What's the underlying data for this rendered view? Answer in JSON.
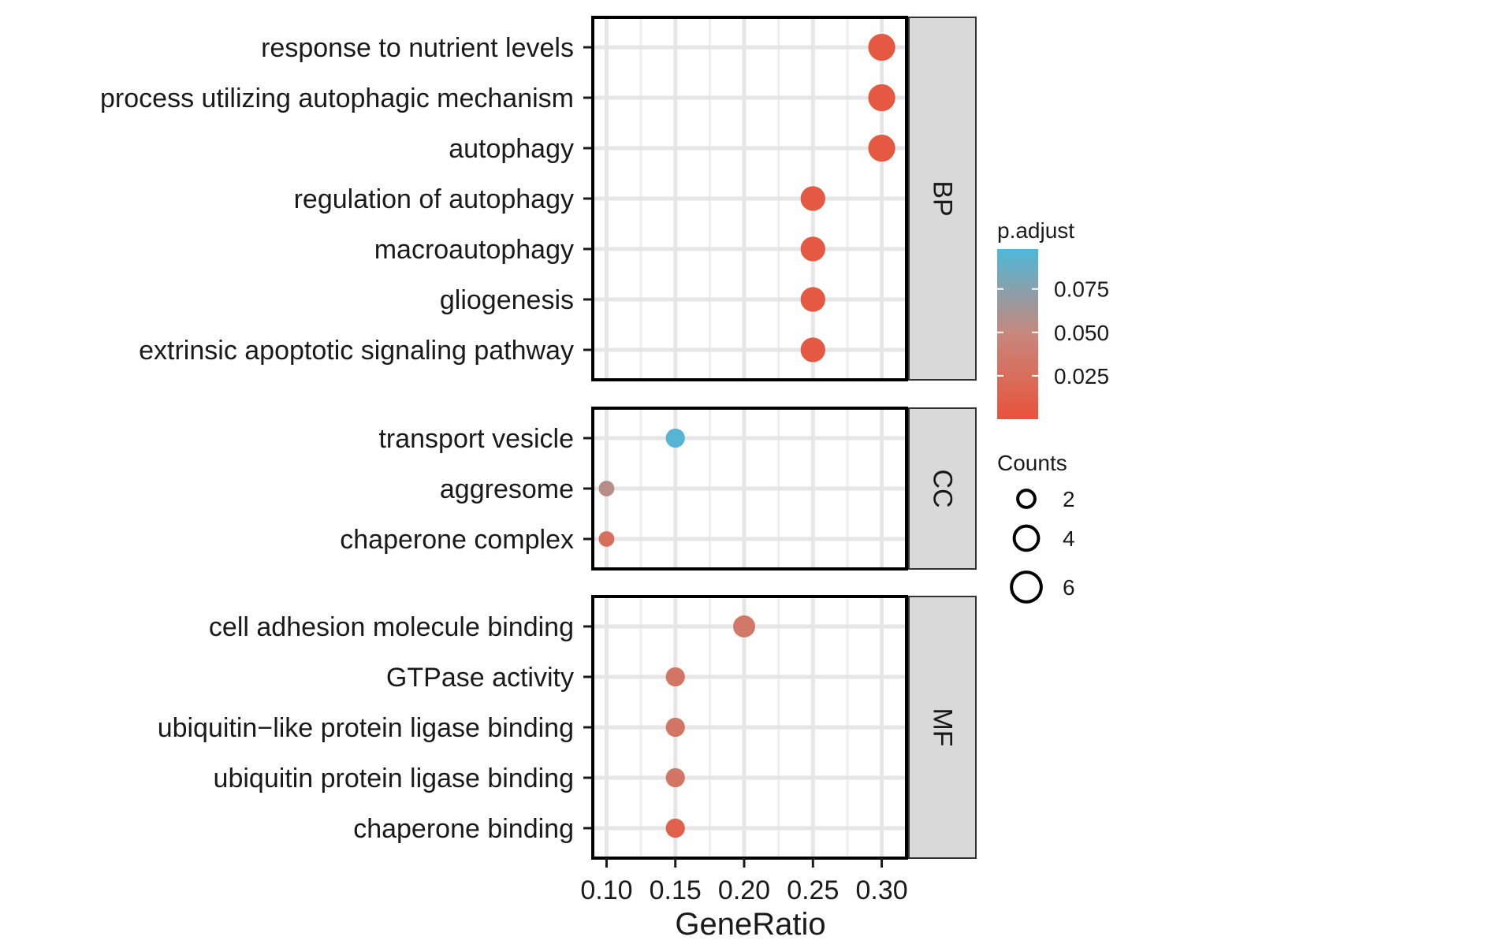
{
  "chart_data": {
    "type": "scatter",
    "xlabel": "GeneRatio",
    "xticks": [
      0.1,
      0.15,
      0.2,
      0.25,
      0.3
    ],
    "xtick_labels": [
      "0.10",
      "0.15",
      "0.20",
      "0.25",
      "0.30"
    ],
    "xlim": [
      0.09,
      0.318
    ],
    "grid": true,
    "facets": [
      {
        "name": "BP",
        "terms": [
          {
            "label": "response to nutrient levels",
            "x": 0.3,
            "count": 6,
            "p_adjust": 0.005
          },
          {
            "label": "process utilizing autophagic mechanism",
            "x": 0.3,
            "count": 6,
            "p_adjust": 0.005
          },
          {
            "label": "autophagy",
            "x": 0.3,
            "count": 6,
            "p_adjust": 0.005
          },
          {
            "label": "regulation of autophagy",
            "x": 0.25,
            "count": 5,
            "p_adjust": 0.005
          },
          {
            "label": "macroautophagy",
            "x": 0.25,
            "count": 5,
            "p_adjust": 0.005
          },
          {
            "label": "gliogenesis",
            "x": 0.25,
            "count": 5,
            "p_adjust": 0.005
          },
          {
            "label": "extrinsic apoptotic signaling pathway",
            "x": 0.25,
            "count": 5,
            "p_adjust": 0.005
          }
        ]
      },
      {
        "name": "CC",
        "terms": [
          {
            "label": "transport vesicle",
            "x": 0.15,
            "count": 3,
            "p_adjust": 0.095
          },
          {
            "label": "aggresome",
            "x": 0.1,
            "count": 2,
            "p_adjust": 0.055
          },
          {
            "label": "chaperone complex",
            "x": 0.1,
            "count": 2,
            "p_adjust": 0.025
          }
        ]
      },
      {
        "name": "MF",
        "terms": [
          {
            "label": "cell adhesion molecule binding",
            "x": 0.2,
            "count": 4,
            "p_adjust": 0.035
          },
          {
            "label": "GTPase activity",
            "x": 0.15,
            "count": 3,
            "p_adjust": 0.032
          },
          {
            "label": "ubiquitin−like protein ligase binding",
            "x": 0.15,
            "count": 3,
            "p_adjust": 0.032
          },
          {
            "label": "ubiquitin protein ligase binding",
            "x": 0.15,
            "count": 3,
            "p_adjust": 0.032
          },
          {
            "label": "chaperone binding",
            "x": 0.15,
            "count": 3,
            "p_adjust": 0.012
          }
        ]
      }
    ],
    "color_legend": {
      "title": "p.adjust",
      "range": [
        0.0,
        0.098
      ],
      "ticks": [
        0.075,
        0.05,
        0.025
      ],
      "tick_labels": [
        "0.075",
        "0.050",
        "0.025"
      ],
      "low_color": "#e8533b",
      "high_color": "#4db8d8"
    },
    "size_legend": {
      "title": "Counts",
      "values": [
        2,
        4,
        6
      ],
      "labels": [
        "2",
        "4",
        "6"
      ]
    }
  }
}
